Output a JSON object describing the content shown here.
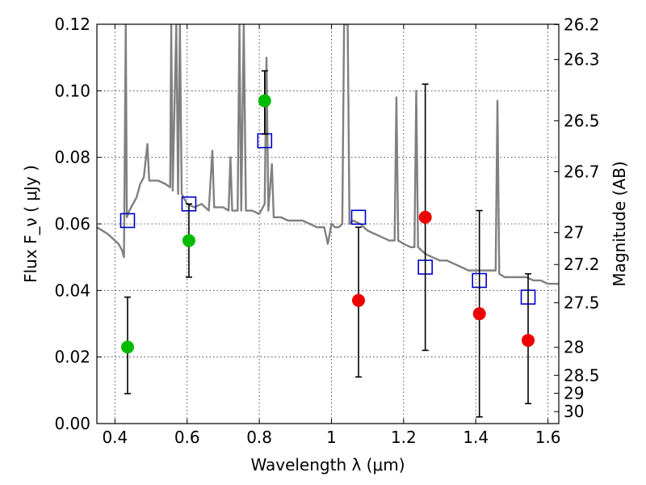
{
  "chart_data": {
    "type": "scatter",
    "xlabel": "Wavelength  λ (μm)",
    "ylabel": "Flux  F_ν  ( μJy )",
    "ylabel_right": "Magnitude (AB)",
    "xlim": [
      0.35,
      1.63
    ],
    "ylim": [
      0.0,
      0.12
    ],
    "grid": true,
    "x_ticks": [
      0.4,
      0.6,
      0.8,
      1.0,
      1.2,
      1.4,
      1.6
    ],
    "x_tick_labels": [
      "0.4",
      "0.6",
      "0.8",
      "1",
      "1.2",
      "1.4",
      "1.6"
    ],
    "y_ticks": [
      0.0,
      0.02,
      0.04,
      0.06,
      0.08,
      0.1,
      0.12
    ],
    "y_tick_labels": [
      "0.00",
      "0.02",
      "0.04",
      "0.06",
      "0.08",
      "0.10",
      "0.12"
    ],
    "right_ticks": [
      {
        "label": "26.2",
        "flux": 0.1199
      },
      {
        "label": "26.3",
        "flux": 0.1094
      },
      {
        "label": "26.5",
        "flux": 0.091
      },
      {
        "label": "26.7",
        "flux": 0.0757
      },
      {
        "label": "27",
        "flux": 0.0574
      },
      {
        "label": "27.2",
        "flux": 0.0478
      },
      {
        "label": "27.5",
        "flux": 0.0363
      },
      {
        "label": "28",
        "flux": 0.0229
      },
      {
        "label": "28.5",
        "flux": 0.0145
      },
      {
        "label": "29",
        "flux": 0.0091
      },
      {
        "label": "30",
        "flux": 0.0036
      }
    ],
    "colors": {
      "model": "#808080",
      "model_points": "#0000cc",
      "detections": "#00bb00",
      "upper_limits": "#ee0000",
      "errorbars": "#000000"
    },
    "series": [
      {
        "kind": "line",
        "points": [
          [
            0.35,
            0.059
          ],
          [
            0.38,
            0.057
          ],
          [
            0.4,
            0.055
          ],
          [
            0.41,
            0.054
          ],
          [
            0.42,
            0.052
          ],
          [
            0.425,
            0.05
          ],
          [
            0.43,
            0.12
          ],
          [
            0.433,
            0.062
          ],
          [
            0.44,
            0.064
          ],
          [
            0.45,
            0.066
          ],
          [
            0.46,
            0.068
          ],
          [
            0.47,
            0.072
          ],
          [
            0.48,
            0.074
          ],
          [
            0.49,
            0.084
          ],
          [
            0.495,
            0.073
          ],
          [
            0.5,
            0.073
          ],
          [
            0.52,
            0.073
          ],
          [
            0.54,
            0.072
          ],
          [
            0.553,
            0.071
          ],
          [
            0.556,
            0.12
          ],
          [
            0.56,
            0.07
          ],
          [
            0.57,
            0.12
          ],
          [
            0.575,
            0.069
          ],
          [
            0.58,
            0.12
          ],
          [
            0.585,
            0.069
          ],
          [
            0.6,
            0.066
          ],
          [
            0.62,
            0.065
          ],
          [
            0.64,
            0.066
          ],
          [
            0.66,
            0.064
          ],
          [
            0.67,
            0.082
          ],
          [
            0.675,
            0.065
          ],
          [
            0.7,
            0.065
          ],
          [
            0.715,
            0.064
          ],
          [
            0.72,
            0.08
          ],
          [
            0.725,
            0.064
          ],
          [
            0.74,
            0.064
          ],
          [
            0.745,
            0.12
          ],
          [
            0.75,
            0.064
          ],
          [
            0.757,
            0.12
          ],
          [
            0.763,
            0.064
          ],
          [
            0.78,
            0.064
          ],
          [
            0.8,
            0.063
          ],
          [
            0.81,
            0.065
          ],
          [
            0.815,
            0.066
          ],
          [
            0.82,
            0.11
          ],
          [
            0.825,
            0.064
          ],
          [
            0.835,
            0.078
          ],
          [
            0.84,
            0.062
          ],
          [
            0.86,
            0.062
          ],
          [
            0.88,
            0.061
          ],
          [
            0.9,
            0.061
          ],
          [
            0.92,
            0.061
          ],
          [
            0.94,
            0.06
          ],
          [
            0.96,
            0.059
          ],
          [
            0.98,
            0.059
          ],
          [
            0.99,
            0.054
          ],
          [
            1.0,
            0.06
          ],
          [
            1.01,
            0.059
          ],
          [
            1.02,
            0.059
          ],
          [
            1.03,
            0.06
          ],
          [
            1.035,
            0.12
          ],
          [
            1.045,
            0.12
          ],
          [
            1.05,
            0.06
          ],
          [
            1.06,
            0.061
          ],
          [
            1.08,
            0.06
          ],
          [
            1.1,
            0.058
          ],
          [
            1.12,
            0.057
          ],
          [
            1.14,
            0.056
          ],
          [
            1.16,
            0.055
          ],
          [
            1.175,
            0.055
          ],
          [
            1.18,
            0.098
          ],
          [
            1.185,
            0.055
          ],
          [
            1.2,
            0.054
          ],
          [
            1.22,
            0.053
          ],
          [
            1.23,
            0.053
          ],
          [
            1.235,
            0.1
          ],
          [
            1.24,
            0.053
          ],
          [
            1.26,
            0.051
          ],
          [
            1.28,
            0.05
          ],
          [
            1.3,
            0.049
          ],
          [
            1.32,
            0.049
          ],
          [
            1.34,
            0.048
          ],
          [
            1.36,
            0.047
          ],
          [
            1.38,
            0.046
          ],
          [
            1.4,
            0.046
          ],
          [
            1.42,
            0.046
          ],
          [
            1.44,
            0.046
          ],
          [
            1.455,
            0.046
          ],
          [
            1.46,
            0.097
          ],
          [
            1.465,
            0.045
          ],
          [
            1.48,
            0.044
          ],
          [
            1.5,
            0.044
          ],
          [
            1.52,
            0.044
          ],
          [
            1.54,
            0.044
          ],
          [
            1.56,
            0.043
          ],
          [
            1.58,
            0.043
          ],
          [
            1.6,
            0.042
          ],
          [
            1.63,
            0.042
          ]
        ]
      },
      {
        "kind": "open-squares",
        "x": [
          0.435,
          0.605,
          0.815,
          1.075,
          1.26,
          1.41,
          1.545
        ],
        "y": [
          0.061,
          0.066,
          0.085,
          0.062,
          0.047,
          0.043,
          0.038
        ]
      },
      {
        "kind": "filled-circles-green",
        "x": [
          0.435,
          0.605,
          0.815
        ],
        "y": [
          0.023,
          0.055,
          0.097
        ],
        "err_low": [
          0.009,
          0.044,
          0.087
        ],
        "err_high": [
          0.038,
          0.066,
          0.106
        ]
      },
      {
        "kind": "filled-circles-red",
        "x": [
          1.075,
          1.26,
          1.41,
          1.545
        ],
        "y": [
          0.037,
          0.062,
          0.033,
          0.025
        ],
        "err_low": [
          0.014,
          0.022,
          0.002,
          0.006
        ],
        "err_high": [
          0.059,
          0.102,
          0.064,
          0.045
        ]
      }
    ]
  }
}
